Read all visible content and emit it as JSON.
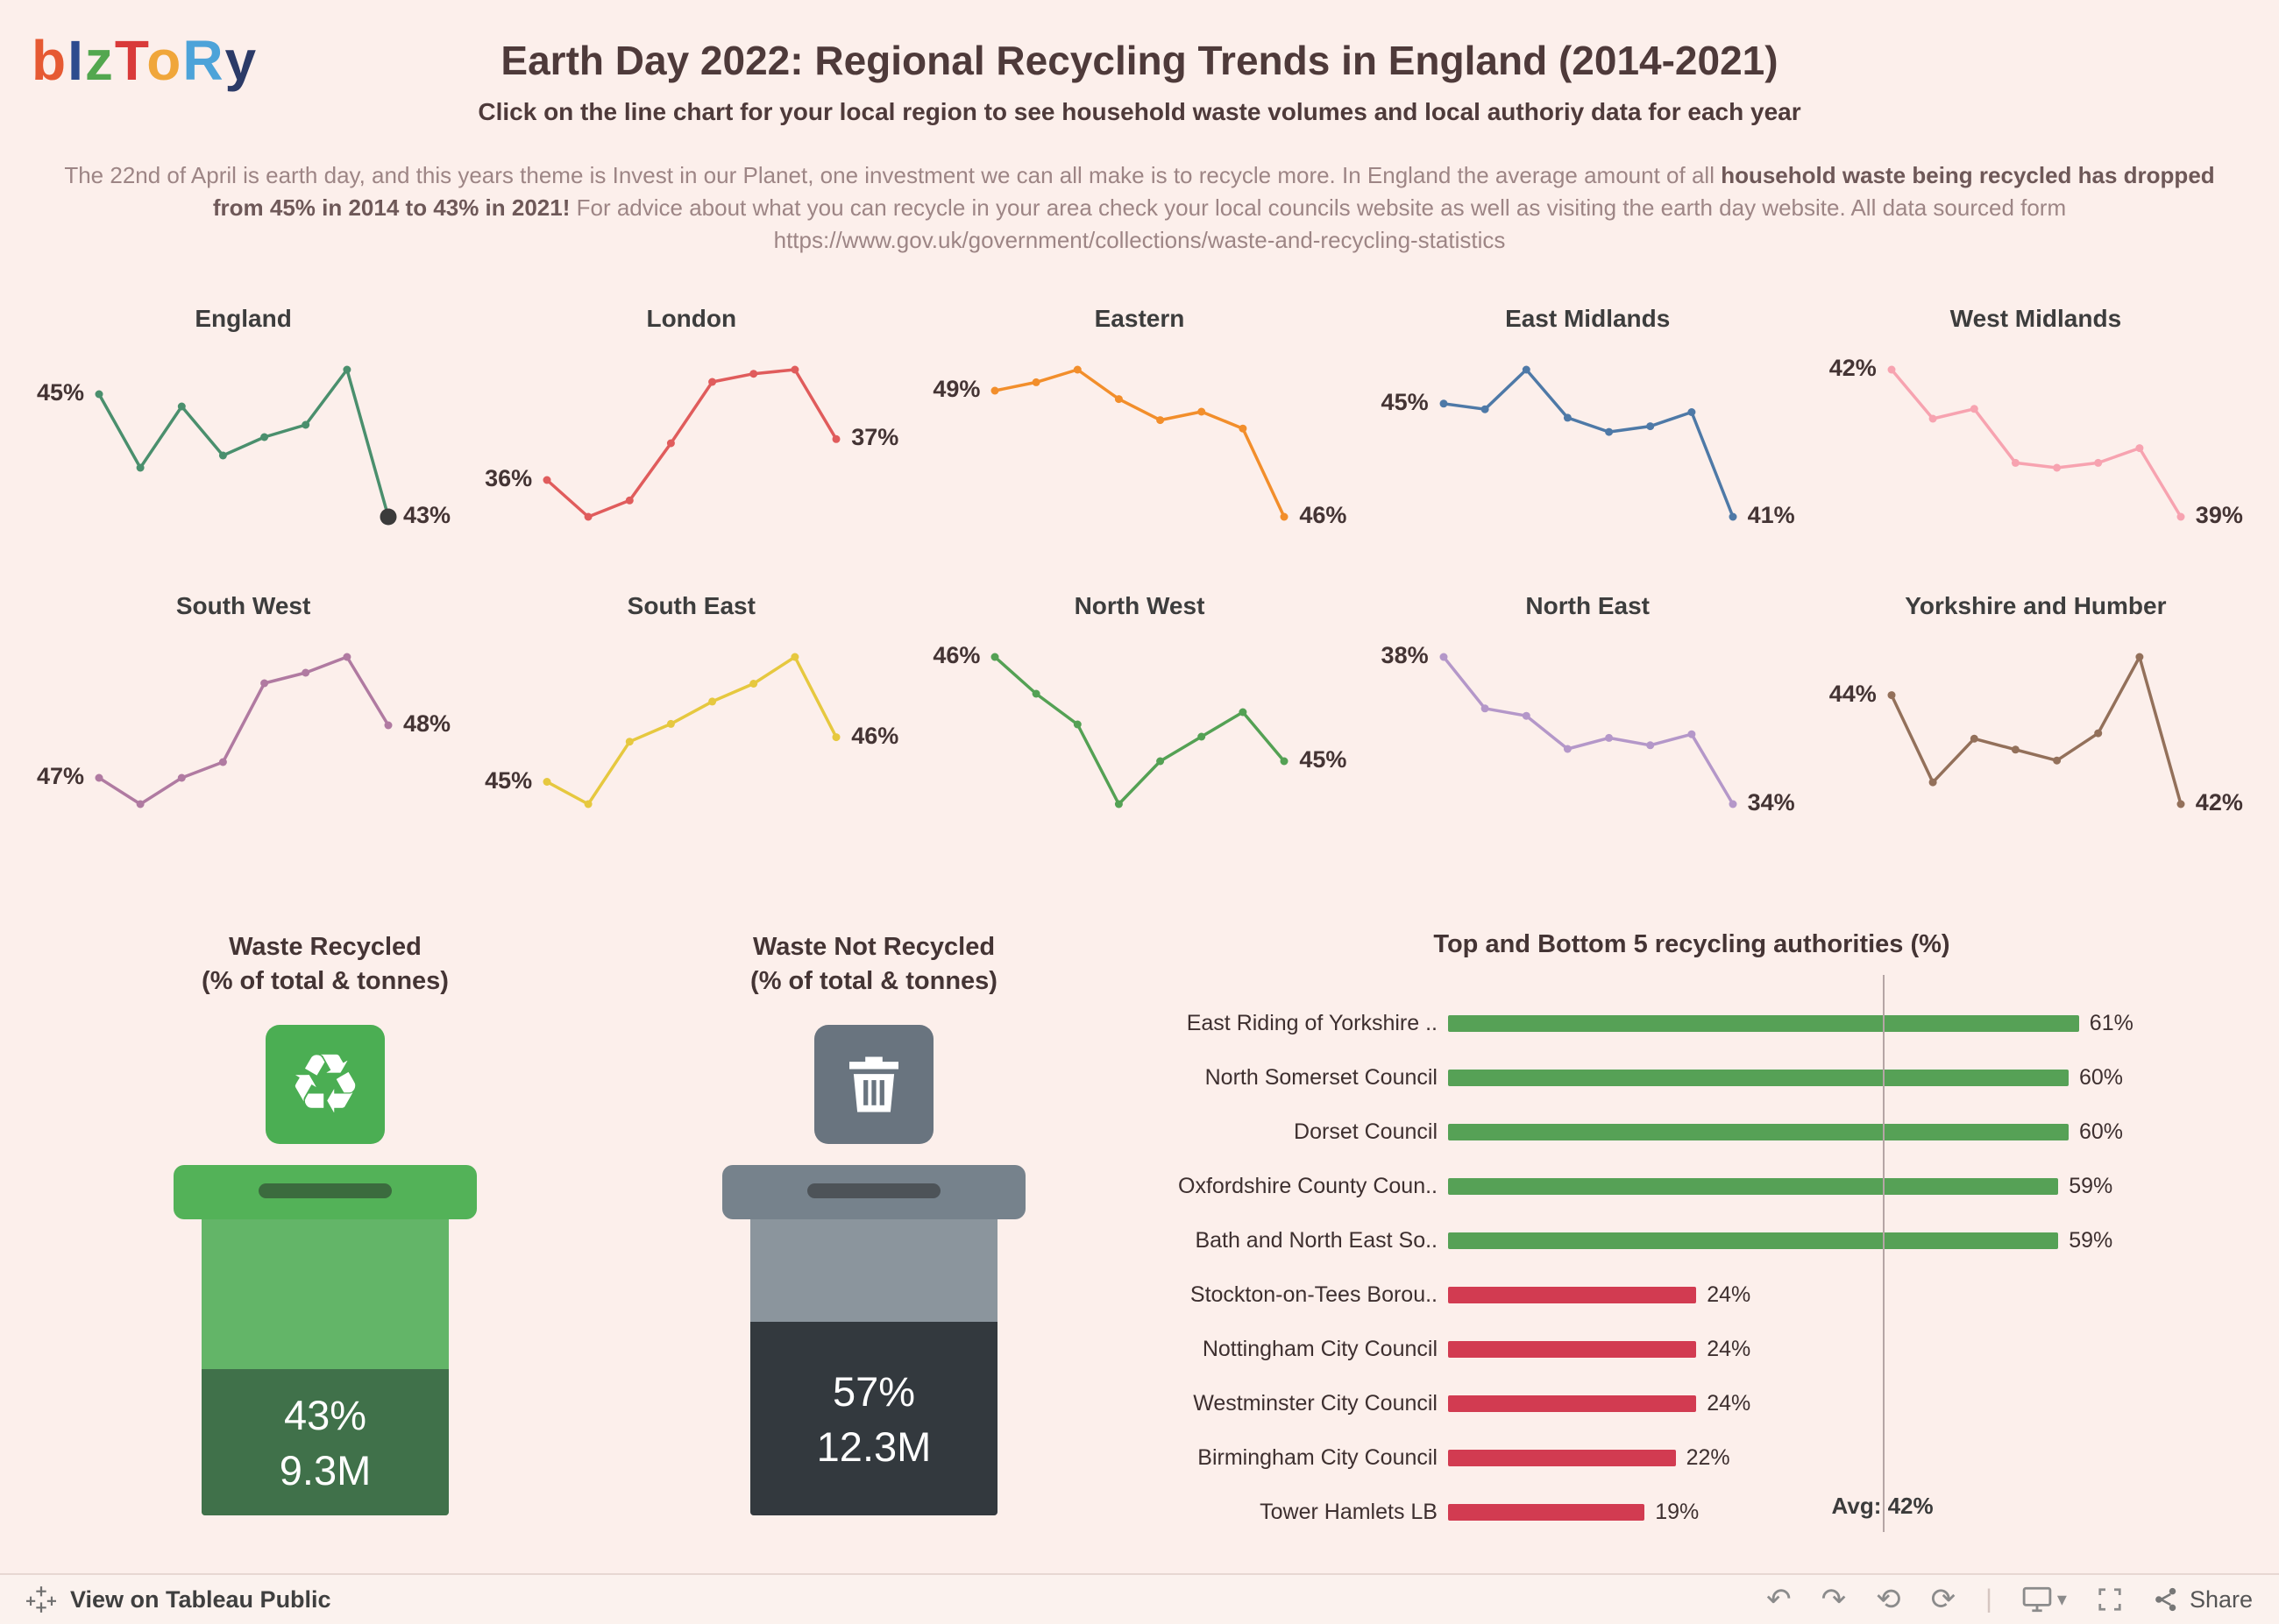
{
  "page": {
    "background": "#fcefeb"
  },
  "header": {
    "logo_letters": [
      {
        "ch": "b",
        "color": "#e65a33"
      },
      {
        "ch": "I",
        "color": "#2d4b8e"
      },
      {
        "ch": "z",
        "color": "#53a74f"
      },
      {
        "ch": "T",
        "color": "#d93a3a"
      },
      {
        "ch": "o",
        "color": "#f0a63a"
      },
      {
        "ch": "R",
        "color": "#4da3d9"
      },
      {
        "ch": "y",
        "color": "#2b3a67"
      }
    ],
    "title": "Earth Day 2022:  Regional Recycling Trends in England (2014-2021)",
    "subtitle": "Click on the line chart for your local region to see household waste volumes and local authoriy data for each year"
  },
  "description": {
    "part1": "The 22nd of April is earth day, and this years theme is Invest in our Planet, one investment we can all make is to recycle more. In England the average amount of all ",
    "part2_bold": "household waste being recycled has dropped from 45% in 2014 to 43% in 2021!",
    "part3": " For advice about what you can recycle in your area check your local councils website as well as visiting the earth day website. All data sourced form https://www.gov.uk/government/collections/waste-and-recycling-statistics"
  },
  "chart_data": [
    {
      "type": "line",
      "title": "England",
      "color": "#4a8f6d",
      "x": [
        "2014",
        "2015",
        "2016",
        "2017",
        "2018",
        "2019",
        "2020",
        "2021"
      ],
      "values": [
        45,
        43.8,
        44.8,
        44,
        44.3,
        44.5,
        45.4,
        43
      ],
      "start_label": "45%",
      "end_label": "43%",
      "end_dot_highlight": true
    },
    {
      "type": "line",
      "title": "London",
      "color": "#e05c5c",
      "x": [
        "2014",
        "2015",
        "2016",
        "2017",
        "2018",
        "2019",
        "2020",
        "2021"
      ],
      "values": [
        36,
        35.1,
        35.5,
        36.9,
        38.4,
        38.6,
        38.7,
        37
      ],
      "start_label": "36%",
      "end_label": "37%"
    },
    {
      "type": "line",
      "title": "Eastern",
      "color": "#f28e2b",
      "x": [
        "2014",
        "2015",
        "2016",
        "2017",
        "2018",
        "2019",
        "2020",
        "2021"
      ],
      "values": [
        49,
        49.2,
        49.5,
        48.8,
        48.3,
        48.5,
        48.1,
        46
      ],
      "start_label": "49%",
      "end_label": "46%"
    },
    {
      "type": "line",
      "title": "East Midlands",
      "color": "#4e79a7",
      "x": [
        "2014",
        "2015",
        "2016",
        "2017",
        "2018",
        "2019",
        "2020",
        "2021"
      ],
      "values": [
        45,
        44.8,
        46.2,
        44.5,
        44,
        44.2,
        44.7,
        41
      ],
      "start_label": "45%",
      "end_label": "41%"
    },
    {
      "type": "line",
      "title": "West Midlands",
      "color": "#f7a3b0",
      "x": [
        "2014",
        "2015",
        "2016",
        "2017",
        "2018",
        "2019",
        "2020",
        "2021"
      ],
      "values": [
        42,
        41,
        41.2,
        40.1,
        40,
        40.1,
        40.4,
        39
      ],
      "start_label": "42%",
      "end_label": "39%"
    },
    {
      "type": "line",
      "title": "South West",
      "color": "#b07aa1",
      "x": [
        "2014",
        "2015",
        "2016",
        "2017",
        "2018",
        "2019",
        "2020",
        "2021"
      ],
      "values": [
        47,
        46.5,
        47,
        47.3,
        48.8,
        49,
        49.3,
        48
      ],
      "start_label": "47%",
      "end_label": "48%"
    },
    {
      "type": "line",
      "title": "South East",
      "color": "#e6c83f",
      "x": [
        "2014",
        "2015",
        "2016",
        "2017",
        "2018",
        "2019",
        "2020",
        "2021"
      ],
      "values": [
        45,
        44.5,
        45.9,
        46.3,
        46.8,
        47.2,
        47.8,
        46
      ],
      "start_label": "45%",
      "end_label": "46%"
    },
    {
      "type": "line",
      "title": "North West",
      "color": "#54a154",
      "x": [
        "2014",
        "2015",
        "2016",
        "2017",
        "2018",
        "2019",
        "2020",
        "2021"
      ],
      "values": [
        46.2,
        45.6,
        45.1,
        43.8,
        44.5,
        44.9,
        45.3,
        44.5
      ],
      "start_label": "46%",
      "end_label": "45%"
    },
    {
      "type": "line",
      "title": "North East",
      "color": "#b497c9",
      "x": [
        "2014",
        "2015",
        "2016",
        "2017",
        "2018",
        "2019",
        "2020",
        "2021"
      ],
      "values": [
        38,
        36.6,
        36.4,
        35.5,
        35.8,
        35.6,
        35.9,
        34
      ],
      "start_label": "38%",
      "end_label": "34%"
    },
    {
      "type": "line",
      "title": "Yorkshire and Humber",
      "color": "#93705a",
      "x": [
        "2014",
        "2015",
        "2016",
        "2017",
        "2018",
        "2019",
        "2020",
        "2021"
      ],
      "values": [
        44,
        42.4,
        43.2,
        43,
        42.8,
        43.3,
        44.7,
        42
      ],
      "start_label": "44%",
      "end_label": "42%"
    },
    {
      "type": "bar",
      "title": "Top and Bottom 5 recycling authorities (%)",
      "orientation": "horizontal",
      "categories": [
        "East Riding of Yorkshire ..",
        "North Somerset Council",
        "Dorset Council",
        "Oxfordshire County Coun..",
        "Bath and North East So..",
        "Stockton-on-Tees Borou..",
        "Nottingham City Council",
        "Westminster City Council",
        "Birmingham City Council",
        "Tower Hamlets LB"
      ],
      "values": [
        61,
        60,
        60,
        59,
        59,
        24,
        24,
        24,
        22,
        19
      ],
      "groups": [
        "top",
        "top",
        "top",
        "top",
        "top",
        "bottom",
        "bottom",
        "bottom",
        "bottom",
        "bottom"
      ],
      "top_color": "#56a156",
      "bottom_color": "#d23b51",
      "avg_value": 42,
      "avg_label": "Avg: 42%",
      "value_suffix": "%",
      "xlim": [
        0,
        65
      ]
    }
  ],
  "bins": {
    "recycled": {
      "title_line1": "Waste Recycled",
      "title_line2": "(% of total & tonnes)",
      "pct": "43%",
      "tonnes": "9.3M",
      "pct_value": 43,
      "icon_glyph": "♻",
      "colors": {
        "icon": "#4bae53",
        "lid": "#53b258",
        "body": "#63b568",
        "fill": "#40714a"
      }
    },
    "not_recycled": {
      "title_line1": "Waste Not Recycled",
      "title_line2": "(% of total & tonnes)",
      "pct": "57%",
      "tonnes": "12.3M",
      "pct_value": 57,
      "colors": {
        "icon": "#69747f",
        "lid": "#76828c",
        "body": "#8b959d",
        "fill": "#33393e"
      }
    }
  },
  "footer": {
    "left_label": "View on Tableau Public",
    "share_label": "Share",
    "icon_glyphs": {
      "undo": "↶",
      "redo": "↷",
      "replay": "⟲",
      "refresh": "⟳",
      "caret": "▾",
      "separator": "|"
    }
  }
}
